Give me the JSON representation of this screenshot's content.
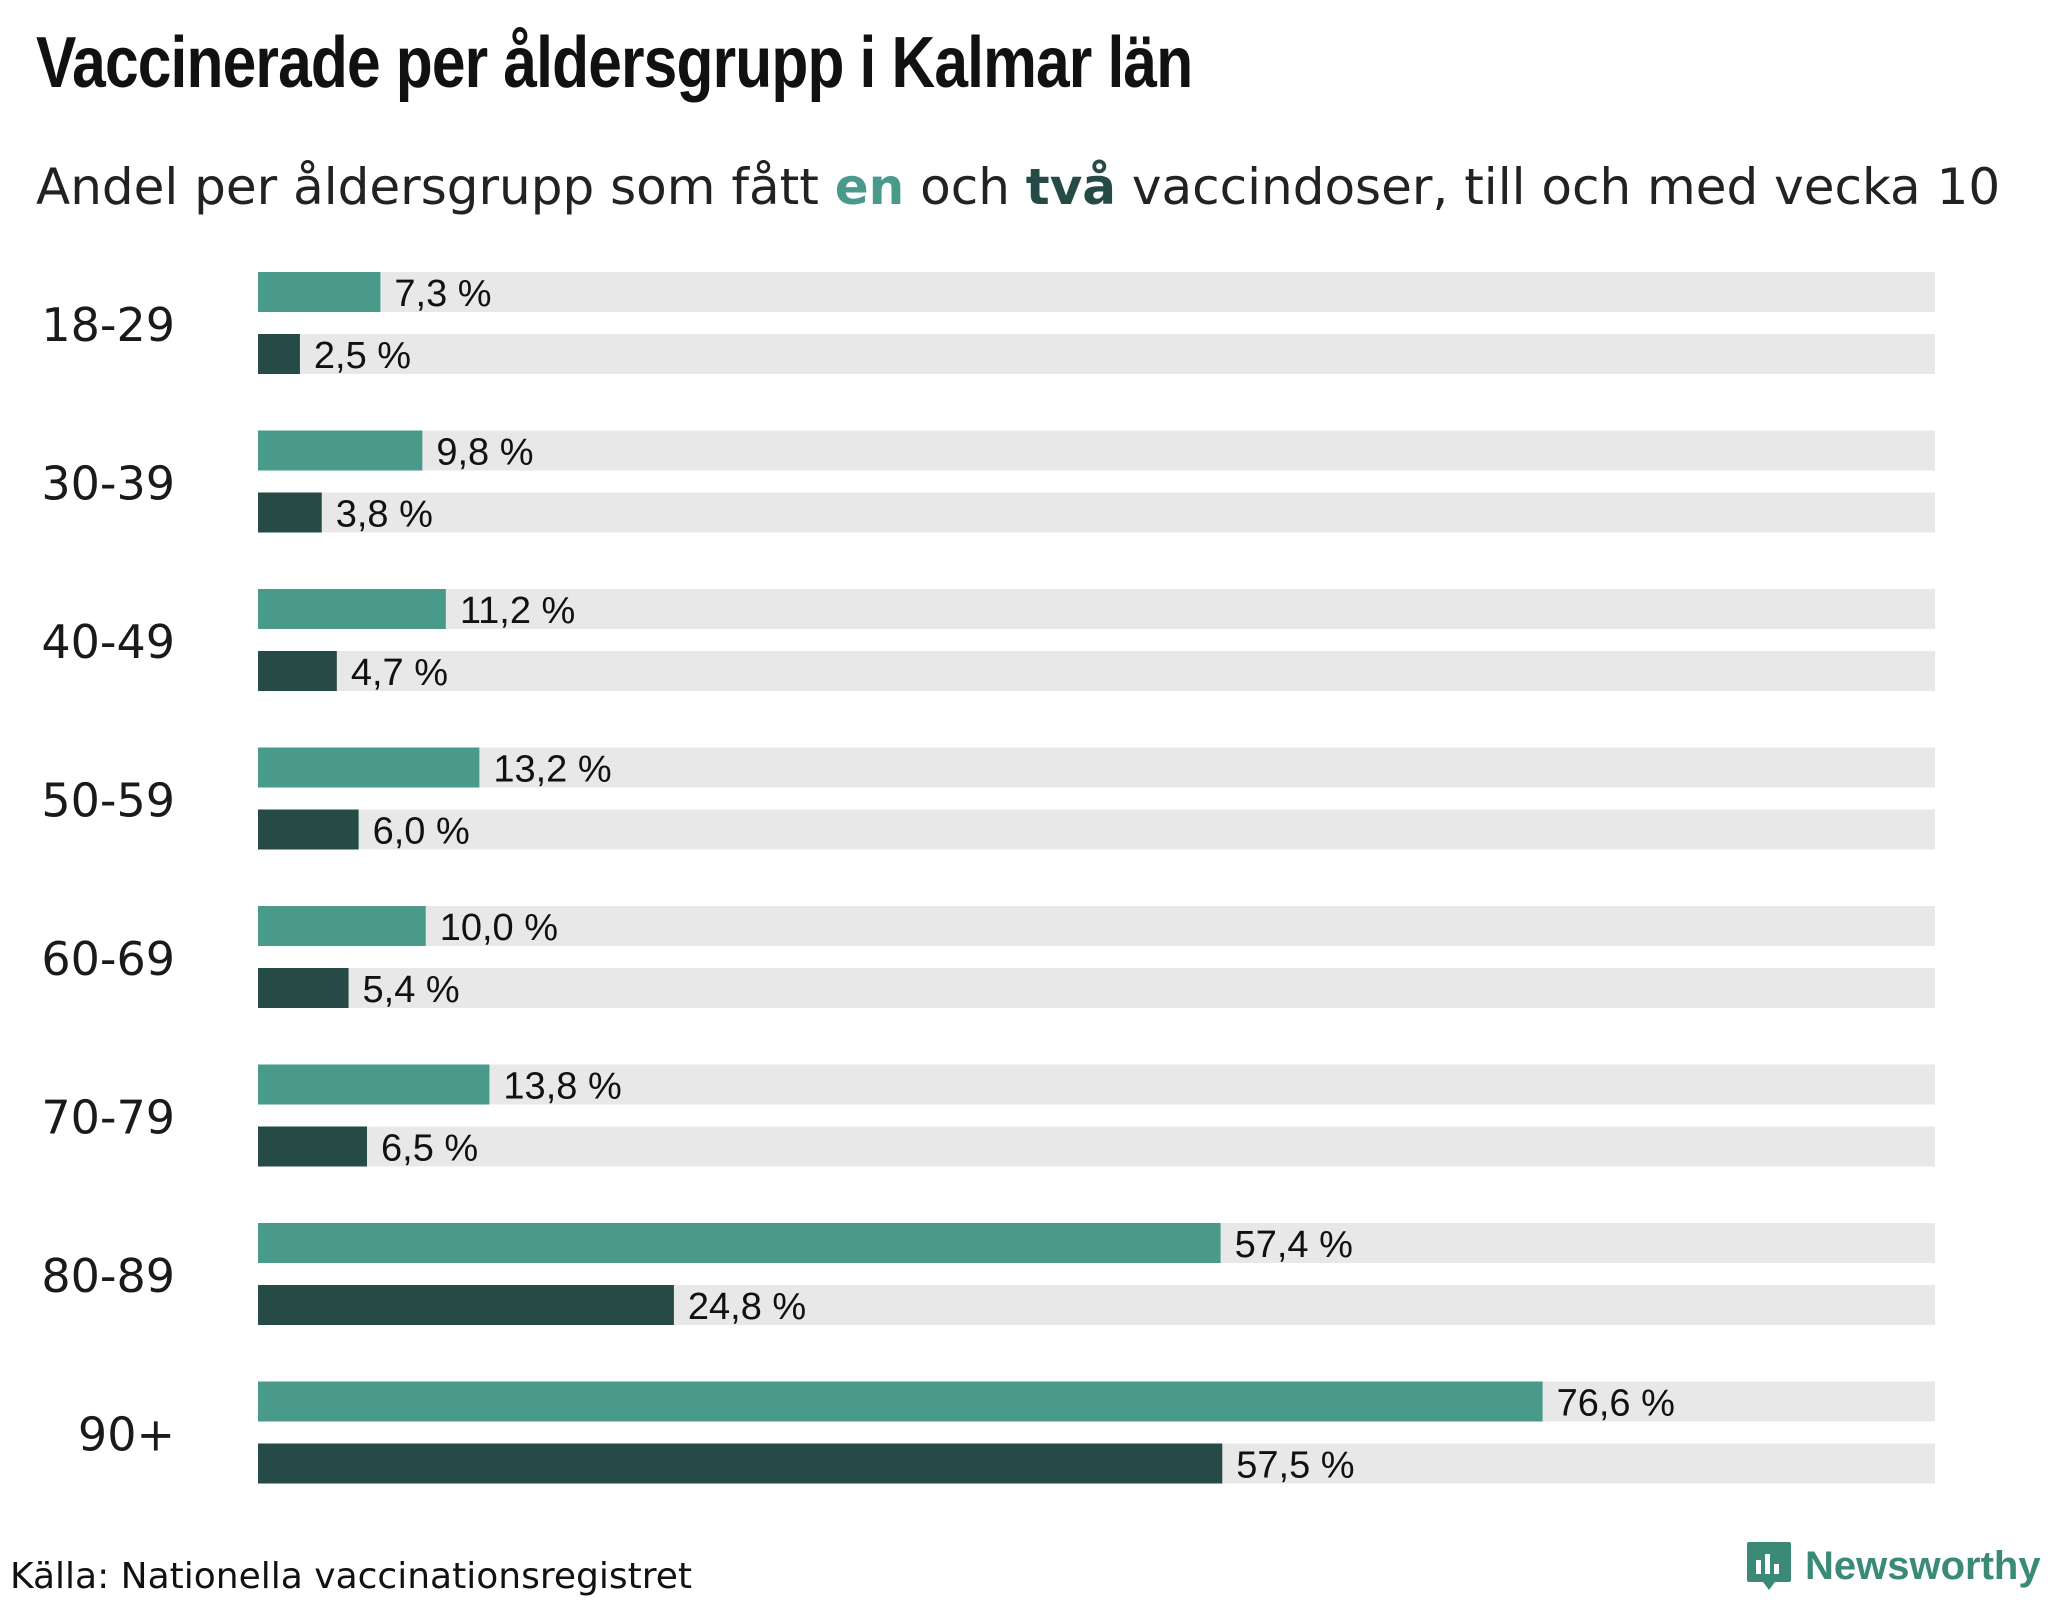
{
  "title": "Vaccinerade per åldersgrupp i Kalmar län",
  "subtitle": {
    "before": "Andel per åldersgrupp som fått ",
    "highlight_one": "en",
    "middle": " och ",
    "highlight_two": "två",
    "after": " vaccindoser, till och med vecka 10"
  },
  "source": "Källa: Nationella vaccinationsregistret",
  "brand": "Newsworthy",
  "colors": {
    "one_dose": "#4a9a8c",
    "two_doses": "#264a46",
    "track": "#e8e8e8",
    "brand": "#3b8a78"
  },
  "chart_data": {
    "type": "bar",
    "orientation": "horizontal",
    "categories": [
      "18-29",
      "30-39",
      "40-49",
      "50-59",
      "60-69",
      "70-79",
      "80-89",
      "90+"
    ],
    "series": [
      {
        "name": "en",
        "values": [
          7.3,
          9.8,
          11.2,
          13.2,
          10.0,
          13.8,
          57.4,
          76.6
        ],
        "labels": [
          "7,3 %",
          "9,8 %",
          "11,2 %",
          "13,2 %",
          "10,0 %",
          "13,8 %",
          "57,4 %",
          "76,6 %"
        ]
      },
      {
        "name": "två",
        "values": [
          2.5,
          3.8,
          4.7,
          6.0,
          5.4,
          6.5,
          24.8,
          57.5
        ],
        "labels": [
          "2,5 %",
          "3,8 %",
          "4,7 %",
          "6,0 %",
          "5,4 %",
          "6,5 %",
          "24,8 %",
          "57,5 %"
        ]
      }
    ],
    "xlim": [
      0,
      100
    ],
    "grid": false,
    "legend": "none"
  }
}
